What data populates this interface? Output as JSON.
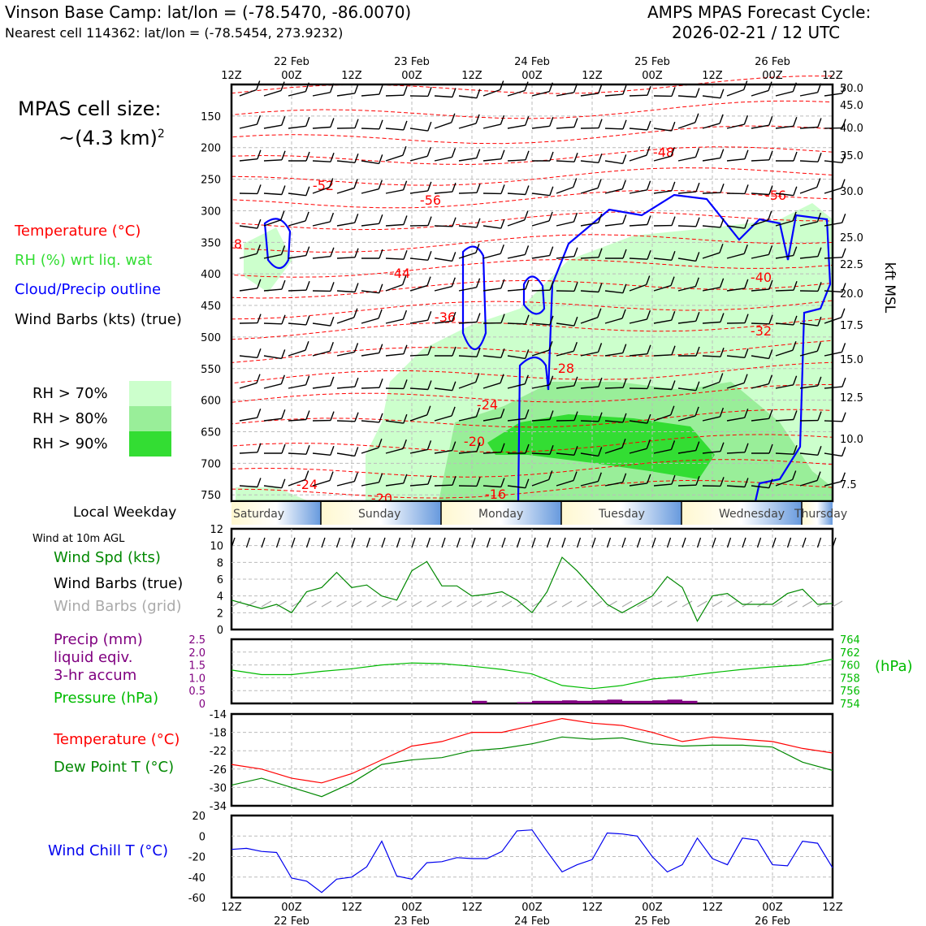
{
  "header": {
    "station_line": "Vinson Base Camp: lat/lon = (-78.5470, -86.0070)",
    "cell_line": "Nearest cell 114362: lat/lon = (-78.5454, 273.9232)",
    "cycle_title": "AMPS MPAS Forecast Cycle:",
    "cycle_time": "2026-02-21 / 12 UTC"
  },
  "legend": {
    "cell_size_label": "MPAS cell size:",
    "cell_size_value": "~(4.3 km)",
    "cell_size_exp": "2",
    "temperature": "Temperature (°C)",
    "rh": "RH (%) wrt liq. wat",
    "cloud": "Cloud/Precip outline",
    "barbs": "Wind Barbs (kts) (true)",
    "rh70": "RH > 70%",
    "rh80": "RH > 80%",
    "rh90": "RH > 90%"
  },
  "colors": {
    "temperature": "#ff0000",
    "rh_label": "#33dd33",
    "cloud": "#0000ff",
    "rh70": "#ccffcc",
    "rh80": "#99ee99",
    "rh90": "#33dd33",
    "wind_speed": "#008800",
    "grid_barbs": "#aaaaaa",
    "precip": "#800080",
    "pressure": "#00bb00",
    "dewpoint": "#008800",
    "windchill": "#0000ee"
  },
  "time_axis": {
    "ticks": [
      "12Z",
      "00Z",
      "12Z",
      "00Z",
      "12Z",
      "00Z",
      "12Z",
      "00Z",
      "12Z",
      "00Z",
      "12Z"
    ],
    "dates": [
      "22 Feb",
      "23 Feb",
      "24 Feb",
      "25 Feb",
      "26 Feb"
    ],
    "weekday_label": "Local Weekday",
    "weekdays": [
      "Saturday",
      "Sunday",
      "Monday",
      "Tuesday",
      "Wednesday",
      "Thursday"
    ]
  },
  "chart_data": [
    {
      "type": "heatmap",
      "name": "time-height cross section",
      "x": "forecast hour 0-120",
      "y_left_label": "",
      "y_left_ticks": [
        150,
        200,
        250,
        300,
        350,
        400,
        450,
        500,
        550,
        600,
        650,
        700,
        750
      ],
      "y_right_label": "kft MSL",
      "y_right_ticks": [
        "50.0",
        "45.0",
        "40.0",
        "35.0",
        "30.0",
        "25.0",
        "22.5",
        "20.0",
        "17.5",
        "15.0",
        "12.5",
        "10.0",
        "7.5"
      ],
      "temperature_contour_labels": [
        "-48",
        "-52",
        "-56",
        "-56",
        "8",
        "-44",
        "-40",
        "-36",
        "-32",
        "-28",
        "-24",
        "-20",
        "-24",
        "-20",
        "-16"
      ],
      "legend": [
        "Temperature (°C)",
        "RH (%) wrt liq. wat",
        "Cloud/Precip outline",
        "Wind Barbs (kts) (true)"
      ]
    },
    {
      "type": "line",
      "name": "Wind Spd (kts)",
      "ylabel": "",
      "y_ticks": [
        "0",
        "2",
        "4",
        "6",
        "8",
        "10",
        "12"
      ],
      "ylim": [
        0,
        12
      ],
      "subtitle": "Wind at 10m AGL",
      "series_labels": [
        "Wind Spd (kts)",
        "Wind Barbs (true)",
        "Wind Barbs (grid)"
      ],
      "x": [
        0,
        3,
        6,
        9,
        12,
        15,
        18,
        21,
        24,
        27,
        30,
        33,
        36,
        39,
        42,
        45,
        48,
        51,
        54,
        57,
        60,
        63,
        66,
        69,
        72,
        75,
        78,
        81,
        84,
        87,
        90,
        93,
        96,
        99,
        102,
        105,
        108,
        111,
        114,
        117,
        120
      ],
      "values": [
        3.5,
        3,
        2.5,
        3,
        2,
        4.5,
        5,
        6.8,
        5,
        5.3,
        4,
        3.5,
        7,
        8.1,
        5.2,
        5.2,
        4,
        4.2,
        4.5,
        3.5,
        2,
        4.5,
        8.6,
        7,
        5,
        3,
        2,
        3,
        4,
        6.3,
        5,
        1,
        4,
        4.3,
        3,
        3,
        3,
        4.3,
        4.8,
        3,
        3.1
      ]
    },
    {
      "type": "bar",
      "name": "Precip (mm) liquid eqiv. 3-hr accum / Pressure (hPa)",
      "series_labels": [
        "Precip (mm)",
        "liquid eqiv.",
        "3-hr accum",
        "Pressure (hPa)"
      ],
      "y_left_ticks": [
        "0",
        "0.5",
        "1.0",
        "1.5",
        "2.0",
        "2.5"
      ],
      "ylim_left": [
        0,
        2.5
      ],
      "y_right_ticks": [
        "754",
        "756",
        "758",
        "760",
        "762",
        "764"
      ],
      "y_right_label": "(hPa)",
      "ylim_right": [
        754,
        764
      ],
      "precip_x": [
        48,
        51,
        54,
        57,
        60,
        63,
        66,
        69,
        72,
        75,
        78,
        81,
        84,
        87,
        90
      ],
      "precip_values": [
        0.1,
        0,
        0,
        0.05,
        0.1,
        0.1,
        0.12,
        0.1,
        0.12,
        0.15,
        0.1,
        0.1,
        0.12,
        0.15,
        0.1
      ],
      "pressure_x": [
        0,
        6,
        12,
        18,
        24,
        30,
        36,
        42,
        48,
        54,
        60,
        66,
        72,
        78,
        84,
        90,
        96,
        102,
        108,
        114,
        120
      ],
      "pressure_values": [
        759.2,
        758.5,
        758.5,
        759,
        759.4,
        760,
        760.3,
        760.2,
        759.8,
        759.3,
        758.6,
        756.8,
        756.3,
        756.8,
        757.8,
        758.2,
        758.8,
        759.3,
        759.7,
        760,
        760.9
      ]
    },
    {
      "type": "line",
      "name": "Temperature / Dew Point",
      "series_labels": [
        "Temperature (°C)",
        "Dew Point T (°C)"
      ],
      "y_ticks": [
        "-14",
        "-18",
        "-22",
        "-26",
        "-30",
        "-34"
      ],
      "ylim": [
        -34,
        -14
      ],
      "x": [
        0,
        6,
        12,
        18,
        24,
        30,
        36,
        42,
        48,
        54,
        60,
        66,
        72,
        78,
        84,
        90,
        96,
        102,
        108,
        114,
        120
      ],
      "temperature": [
        -25,
        -26,
        -28,
        -29,
        -27,
        -24,
        -21,
        -20,
        -18,
        -18,
        -16.5,
        -15,
        -16,
        -16.5,
        -18,
        -20,
        -19,
        -19.5,
        -20,
        -21.5,
        -22.5
      ],
      "dewpoint": [
        -29.5,
        -28,
        -30,
        -32,
        -29,
        -25,
        -24,
        -23.5,
        -22,
        -21.5,
        -20.5,
        -19,
        -19.5,
        -19.2,
        -20.5,
        -21,
        -20.8,
        -20.8,
        -21.2,
        -24.5,
        -26.3
      ]
    },
    {
      "type": "line",
      "name": "Wind Chill T (°C)",
      "series_labels": [
        "Wind Chill T (°C)"
      ],
      "y_ticks": [
        "20",
        "0",
        "-20",
        "-40",
        "-60"
      ],
      "ylim": [
        -60,
        20
      ],
      "x": [
        0,
        3,
        6,
        9,
        12,
        15,
        18,
        21,
        24,
        27,
        30,
        33,
        36,
        39,
        42,
        45,
        48,
        51,
        54,
        57,
        60,
        63,
        66,
        69,
        72,
        75,
        78,
        81,
        84,
        87,
        90,
        93,
        96,
        99,
        102,
        105,
        108,
        111,
        114,
        117,
        120
      ],
      "values": [
        -13,
        -12,
        -15,
        -16,
        -41,
        -44,
        -55,
        -42,
        -40,
        -30,
        -5,
        -39,
        -42,
        -26,
        -25,
        -21,
        -22,
        -22,
        -15,
        5,
        6,
        -15,
        -35,
        -28,
        -23,
        3,
        2,
        0,
        -20,
        -35,
        -28,
        -2,
        -22,
        -28,
        -2,
        -4,
        -28,
        -29,
        -5,
        -7,
        -31
      ]
    }
  ],
  "bottom_panel_labels": {
    "wind_spd": "Wind Spd (kts)",
    "wind_barbs_true": "Wind Barbs (true)",
    "wind_barbs_grid": "Wind Barbs (grid)",
    "precip1": "Precip (mm)",
    "precip2": "liquid eqiv.",
    "precip3": "3-hr accum",
    "pressure": "Pressure (hPa)",
    "pressure_unit": "(hPa)",
    "temperature": "Temperature (°C)",
    "dewpoint": "Dew Point T (°C)",
    "windchill": "Wind Chill T (°C)",
    "wind_subtitle": "Wind at 10m AGL",
    "kft_label": "kft MSL"
  }
}
